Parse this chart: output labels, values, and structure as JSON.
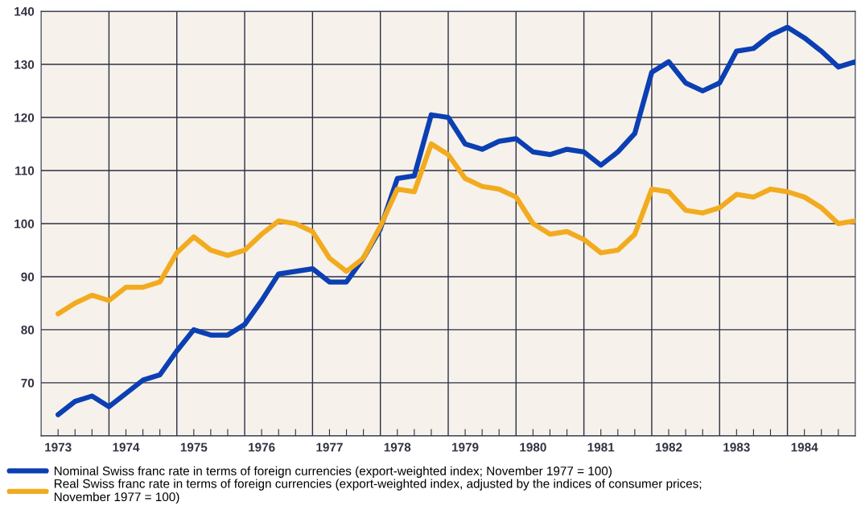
{
  "chart_data": {
    "type": "line",
    "x": [
      1973.0,
      1973.25,
      1973.5,
      1973.75,
      1974.0,
      1974.25,
      1974.5,
      1974.75,
      1975.0,
      1975.25,
      1975.5,
      1975.75,
      1976.0,
      1976.25,
      1976.5,
      1976.75,
      1977.0,
      1977.25,
      1977.5,
      1977.75,
      1978.0,
      1978.25,
      1978.5,
      1978.75,
      1979.0,
      1979.25,
      1979.5,
      1979.75,
      1980.0,
      1980.25,
      1980.5,
      1980.75,
      1981.0,
      1981.25,
      1981.5,
      1981.75,
      1982.0,
      1982.25,
      1982.5,
      1982.75,
      1983.0,
      1983.25,
      1983.5,
      1983.75,
      1984.0,
      1984.25,
      1984.5,
      1984.75
    ],
    "series": [
      {
        "name": "Nominal Swiss franc rate in terms of foreign currencies (export-weighted index; November 1977 = 100)",
        "color": "#0b3fb3",
        "values": [
          64,
          66.5,
          67.5,
          65.5,
          68,
          70.5,
          71.5,
          76,
          80,
          79,
          79,
          81,
          85.5,
          90.5,
          91,
          91.5,
          89,
          89,
          93.5,
          99,
          108.5,
          109,
          120.5,
          120,
          115,
          114,
          115.5,
          116,
          113.5,
          113,
          114,
          113.5,
          111,
          113.5,
          117,
          128.5,
          130.5,
          126.5,
          125,
          126.5,
          132.5,
          133,
          135.5,
          137,
          135,
          132.5,
          129.5,
          130.5
        ]
      },
      {
        "name": "Real Swiss franc rate in terms of foreign currencies (export-weighted index, adjusted by the indices of consumer prices;\nNovember 1977 = 100)",
        "color": "#f2ab1f",
        "values": [
          83,
          85,
          86.5,
          85.5,
          88,
          88,
          89,
          94.5,
          97.5,
          95,
          94,
          95,
          98,
          100.5,
          100,
          98.5,
          93.5,
          91,
          93.5,
          99.5,
          106.5,
          106,
          115,
          113,
          108.5,
          107,
          106.5,
          105,
          100,
          98,
          98.5,
          97,
          94.5,
          95,
          98,
          106.5,
          106,
          102.5,
          102,
          103,
          105.5,
          105,
          106.5,
          106,
          105,
          103,
          100,
          100.5
        ]
      }
    ],
    "xlim": [
      1972.75,
      1984.75
    ],
    "xticks": [
      {
        "value": 1973,
        "label": "1973"
      },
      {
        "value": 1973.25,
        "label": null
      },
      {
        "value": 1973.5,
        "label": null
      },
      {
        "value": 1974,
        "label": "1974"
      },
      {
        "value": 1974.25,
        "label": null
      },
      {
        "value": 1974.5,
        "label": null
      },
      {
        "value": 1975,
        "label": "1975"
      },
      {
        "value": 1975.25,
        "label": null
      },
      {
        "value": 1975.5,
        "label": null
      },
      {
        "value": 1976,
        "label": "1976"
      },
      {
        "value": 1976.25,
        "label": null
      },
      {
        "value": 1976.5,
        "label": null
      },
      {
        "value": 1977,
        "label": "1977"
      },
      {
        "value": 1977.25,
        "label": null
      },
      {
        "value": 1977.5,
        "label": null
      },
      {
        "value": 1978,
        "label": "1978"
      },
      {
        "value": 1978.25,
        "label": null
      },
      {
        "value": 1978.5,
        "label": null
      },
      {
        "value": 1979,
        "label": "1979"
      },
      {
        "value": 1979.25,
        "label": null
      },
      {
        "value": 1979.5,
        "label": null
      },
      {
        "value": 1980,
        "label": "1980"
      },
      {
        "value": 1980.25,
        "label": null
      },
      {
        "value": 1980.5,
        "label": null
      },
      {
        "value": 1981,
        "label": "1981"
      },
      {
        "value": 1981.25,
        "label": null
      },
      {
        "value": 1981.5,
        "label": null
      },
      {
        "value": 1982,
        "label": "1982"
      },
      {
        "value": 1982.25,
        "label": null
      },
      {
        "value": 1982.5,
        "label": null
      },
      {
        "value": 1983,
        "label": "1983"
      },
      {
        "value": 1983.25,
        "label": null
      },
      {
        "value": 1983.5,
        "label": null
      },
      {
        "value": 1984,
        "label": "1984"
      },
      {
        "value": 1984.25,
        "label": null
      },
      {
        "value": 1984.5,
        "label": null
      }
    ],
    "ylim": [
      60,
      140
    ],
    "yticks": [
      {
        "value": 60,
        "label": null
      },
      70,
      80,
      90,
      100,
      110,
      120,
      130,
      140
    ],
    "grid": "y",
    "ref_lines": [
      {
        "axis": "x",
        "value": 1973.75,
        "color": "#2a2f45"
      },
      {
        "axis": "x",
        "value": 1974.75,
        "color": "#2a2f45"
      },
      {
        "axis": "x",
        "value": 1975.75,
        "color": "#2a2f45"
      },
      {
        "axis": "x",
        "value": 1976.75,
        "color": "#2a2f45"
      },
      {
        "axis": "x",
        "value": 1977.75,
        "color": "#2a2f45"
      },
      {
        "axis": "x",
        "value": 1978.75,
        "color": "#2a2f45"
      },
      {
        "axis": "x",
        "value": 1979.75,
        "color": "#2a2f45"
      },
      {
        "axis": "x",
        "value": 1980.75,
        "color": "#2a2f45"
      },
      {
        "axis": "x",
        "value": 1981.75,
        "color": "#2a2f45"
      },
      {
        "axis": "x",
        "value": 1982.75,
        "color": "#2a2f45"
      },
      {
        "axis": "x",
        "value": 1983.75,
        "color": "#2a2f45"
      }
    ],
    "legend": "bottom",
    "line_style": "solid",
    "marker": "none"
  }
}
